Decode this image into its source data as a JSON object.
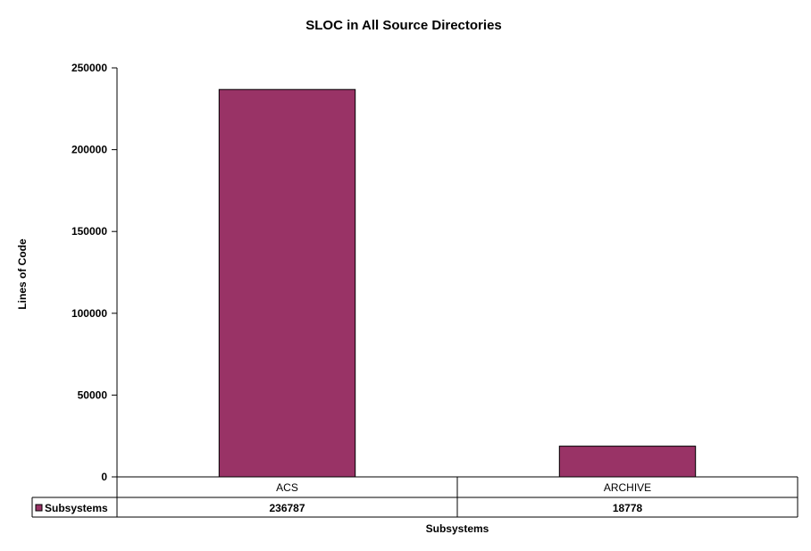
{
  "chart_data": {
    "type": "bar",
    "title": "SLOC in All Source Directories",
    "xlabel": "Subsystems",
    "ylabel": "Lines of Code",
    "categories": [
      "ACS",
      "ARCHIVE"
    ],
    "series": [
      {
        "name": "Subsystems",
        "values": [
          236787,
          18778
        ],
        "color": "#993366"
      }
    ],
    "ylim": [
      0,
      250000
    ],
    "yticks": [
      0,
      50000,
      100000,
      150000,
      200000,
      250000
    ],
    "data_table": true,
    "grid": false,
    "legend": "data-table"
  }
}
